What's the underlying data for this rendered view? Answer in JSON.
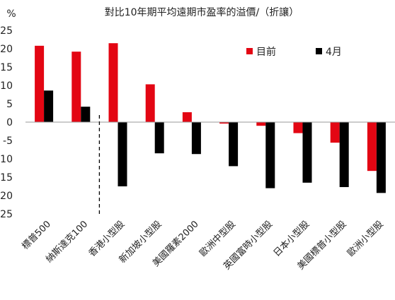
{
  "chart_data": {
    "type": "bar",
    "title": "對比10年期平均遠期市盈率的溢價/（折讓）",
    "ylabel": "%",
    "xlabel": "",
    "ylim": [
      -25,
      25
    ],
    "yticks": [
      25,
      20,
      15,
      10,
      5,
      0,
      -5,
      -10,
      -15,
      -20,
      -25
    ],
    "categories": [
      "標普500",
      "納斯達克100",
      "香港小型股",
      "新加坡小型股",
      "美國羅素2000",
      "歐洲中型股",
      "英國富時小型股",
      "日本小型股",
      "美國標普小型股",
      "歐洲小型股"
    ],
    "series": [
      {
        "name": "目前",
        "color": "#e30613",
        "values": [
          20.8,
          19.2,
          21.5,
          10.3,
          2.7,
          -0.4,
          -1.0,
          -3.0,
          -5.6,
          -13.3
        ]
      },
      {
        "name": "4月",
        "color": "#000000",
        "values": [
          8.6,
          4.2,
          -17.5,
          -8.5,
          -8.7,
          -12.0,
          -18.0,
          -16.5,
          -17.7,
          -19.3
        ]
      }
    ],
    "legend_position": "top-right",
    "grid": false,
    "divider_after_category": 2
  }
}
